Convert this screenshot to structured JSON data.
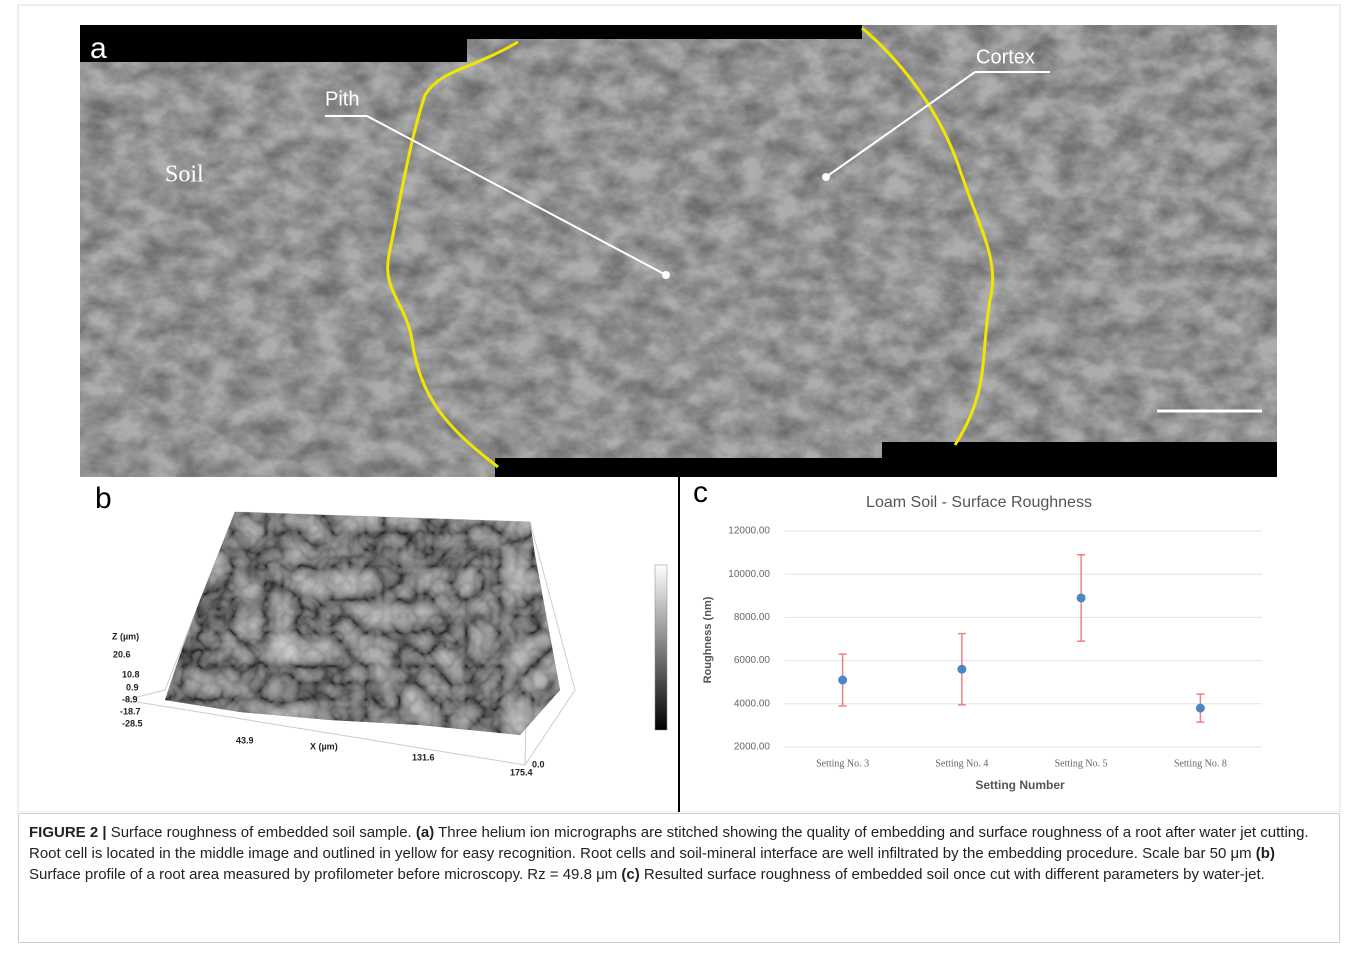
{
  "panel_a": {
    "tag": "a",
    "labels": {
      "pith": "Pith",
      "cortex": "Cortex",
      "soil": "Soil"
    }
  },
  "panel_b": {
    "tag": "b",
    "z_axis_label": "Z (µm)",
    "z_ticks": [
      "20.6",
      "10.8",
      "0.9",
      "-8.9",
      "-18.7",
      "-28.5"
    ],
    "x_axis_label": "X (µm)",
    "x_ticks": [
      "43.9",
      "131.6",
      "175.4",
      "0.0"
    ]
  },
  "panel_c": {
    "tag": "c"
  },
  "chart_data": {
    "type": "errorbar",
    "title": "Loam Soil -  Surface Roughness",
    "x_label": "Setting Number",
    "y_label": "Roughness (nm)",
    "categories": [
      "Setting No. 3",
      "Setting No. 4",
      "Setting No. 5",
      "Setting No. 8"
    ],
    "values": [
      5100,
      5600,
      8900,
      3800
    ],
    "errors": [
      1200,
      1650,
      2000,
      650
    ],
    "color": "#4a86c8",
    "error_color": "#f08080",
    "ylim": [
      2000,
      12000
    ],
    "yticks": [
      {
        "value": 2000,
        "label": "2000.00"
      },
      {
        "value": 4000,
        "label": "4000.00"
      },
      {
        "value": 6000,
        "label": "6000.00"
      },
      {
        "value": 8000,
        "label": "8000.00"
      },
      {
        "value": 10000,
        "label": "10000.00"
      },
      {
        "value": 12000,
        "label": "12000.00"
      }
    ],
    "grid": true
  },
  "caption": {
    "label": "FIGURE 2 |",
    "intro": " Surface roughness of embedded soil sample. ",
    "a_tag": "(a)",
    "a_text": " Three helium ion micrographs are stitched showing the quality of embedding and surface roughness of a root after water jet cutting. Root cell is located in the middle image and outlined in yellow for easy recognition. Root cells and soil-mineral interface are well infiltrated by the embedding procedure. Scale bar 50 μm ",
    "b_tag": "(b)",
    "b_text": " Surface profile of a root area measured by profilometer before microscopy. Rz =  49.8 μm ",
    "c_tag": "(c)",
    "c_text": " Resulted surface roughness of embedded soil once cut with different parameters by water-jet."
  }
}
